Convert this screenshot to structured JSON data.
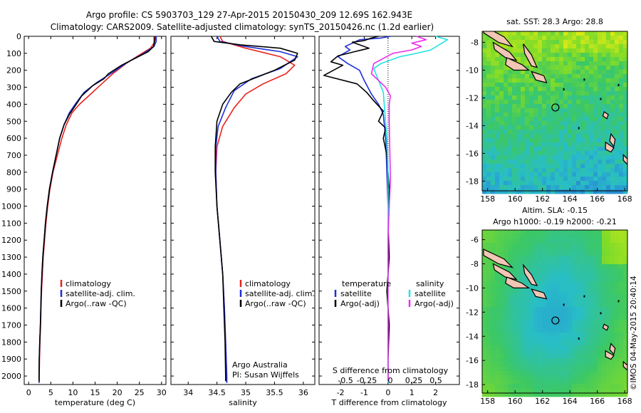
{
  "header": {
    "line1": "Argo profile: CS 5903703_129 27-Apr-2015 20150430_209 12.69S 162.943E",
    "line2": "Climatology: CARS2009. Satellite-adjusted climatology: synTS_20150426.nc (1.2d earlier)"
  },
  "credit": "©IMOS 04-May-2015 20:40:14",
  "colors": {
    "climatology": "#e8241c",
    "satellite": "#1d2fd6",
    "argo": "#000000",
    "sat_sal": "#22e3e3",
    "argo_sal": "#ee2bee"
  },
  "chart_data": [
    {
      "id": "temperature",
      "type": "line",
      "xlabel": "temperature (deg C)",
      "ylim": [
        2050,
        0
      ],
      "xlim": [
        -1,
        31
      ],
      "xticks": [
        "0",
        "5",
        "10",
        "15",
        "20",
        "25",
        "30"
      ],
      "yticks": [
        "0",
        "100",
        "200",
        "300",
        "400",
        "500",
        "600",
        "700",
        "800",
        "900",
        "1000",
        "1100",
        "1200",
        "1300",
        "1400",
        "1500",
        "1600",
        "1700",
        "1800",
        "1900",
        "2000"
      ],
      "legend": [
        "climatology",
        "satellite-adj. clim.",
        "Argo(..raw -QC)"
      ],
      "series": [
        {
          "name": "climatology",
          "color": "#e8241c",
          "points": [
            [
              28.3,
              0
            ],
            [
              28.3,
              40
            ],
            [
              27.5,
              70
            ],
            [
              25,
              110
            ],
            [
              22,
              160
            ],
            [
              19,
              220
            ],
            [
              16.5,
              280
            ],
            [
              14,
              340
            ],
            [
              11.5,
              400
            ],
            [
              9.8,
              450
            ],
            [
              8.5,
              520
            ],
            [
              7.5,
              600
            ],
            [
              6.5,
              700
            ],
            [
              5.5,
              800
            ],
            [
              4.8,
              900
            ],
            [
              4.3,
              1000
            ],
            [
              3.9,
              1100
            ],
            [
              3.6,
              1200
            ],
            [
              3.3,
              1300
            ],
            [
              3.1,
              1400
            ],
            [
              2.9,
              1500
            ],
            [
              2.8,
              1600
            ],
            [
              2.7,
              1700
            ],
            [
              2.55,
              1800
            ],
            [
              2.45,
              1900
            ],
            [
              2.4,
              2000
            ],
            [
              2.4,
              2040
            ]
          ]
        },
        {
          "name": "satellite-adj. clim.",
          "color": "#1d2fd6",
          "points": [
            [
              28.8,
              0
            ],
            [
              28.8,
              30
            ],
            [
              28.3,
              60
            ],
            [
              26,
              100
            ],
            [
              22.5,
              150
            ],
            [
              18.5,
              220
            ],
            [
              15.5,
              270
            ],
            [
              12.5,
              330
            ],
            [
              10.5,
              400
            ],
            [
              9.2,
              450
            ],
            [
              8,
              520
            ],
            [
              7,
              600
            ],
            [
              6.2,
              700
            ],
            [
              5.4,
              800
            ],
            [
              4.7,
              900
            ],
            [
              4.2,
              1000
            ],
            [
              3.8,
              1100
            ],
            [
              3.5,
              1200
            ],
            [
              3.2,
              1300
            ],
            [
              3,
              1400
            ],
            [
              2.85,
              1500
            ],
            [
              2.75,
              1600
            ],
            [
              2.65,
              1700
            ],
            [
              2.5,
              1800
            ],
            [
              2.4,
              1900
            ],
            [
              2.35,
              2000
            ],
            [
              2.35,
              2040
            ]
          ]
        },
        {
          "name": "Argo(..raw -QC)",
          "color": "#000000",
          "points": [
            [
              28.5,
              0
            ],
            [
              28.5,
              20
            ],
            [
              28.2,
              60
            ],
            [
              27,
              90
            ],
            [
              24,
              130
            ],
            [
              21,
              170
            ],
            [
              18,
              220
            ],
            [
              17,
              250
            ],
            [
              14.5,
              290
            ],
            [
              12,
              350
            ],
            [
              10.5,
              410
            ],
            [
              9.2,
              460
            ],
            [
              8,
              520
            ],
            [
              7,
              600
            ],
            [
              6.2,
              700
            ],
            [
              5.4,
              800
            ],
            [
              4.7,
              900
            ],
            [
              4.2,
              1000
            ],
            [
              3.8,
              1100
            ],
            [
              3.5,
              1200
            ],
            [
              3.2,
              1300
            ],
            [
              3,
              1400
            ],
            [
              2.85,
              1500
            ],
            [
              2.75,
              1600
            ],
            [
              2.65,
              1700
            ],
            [
              2.5,
              1800
            ],
            [
              2.4,
              1900
            ],
            [
              2.35,
              2000
            ],
            [
              2.35,
              2030
            ]
          ]
        }
      ]
    },
    {
      "id": "salinity",
      "type": "line",
      "xlabel": "salinity",
      "ylim": [
        2050,
        0
      ],
      "xlim": [
        33.7,
        36.2
      ],
      "xticks": [
        "34",
        "34.5",
        "35",
        "35.5",
        "36"
      ],
      "legend": [
        "climatology",
        "satellite-adj. clim.",
        "Argo(..raw -QC)"
      ],
      "annotation": [
        "Argo Australia",
        "PI: Susan Wijffels"
      ],
      "series": [
        {
          "name": "climatology",
          "color": "#e8241c",
          "points": [
            [
              34.55,
              0
            ],
            [
              34.6,
              30
            ],
            [
              35,
              70
            ],
            [
              35.6,
              120
            ],
            [
              35.85,
              170
            ],
            [
              35.7,
              220
            ],
            [
              35.3,
              280
            ],
            [
              35,
              340
            ],
            [
              34.8,
              420
            ],
            [
              34.6,
              530
            ],
            [
              34.5,
              650
            ],
            [
              34.48,
              800
            ],
            [
              34.5,
              1000
            ],
            [
              34.55,
              1200
            ],
            [
              34.6,
              1400
            ],
            [
              34.63,
              1600
            ],
            [
              34.65,
              1800
            ],
            [
              34.67,
              2000
            ],
            [
              34.67,
              2040
            ]
          ]
        },
        {
          "name": "satellite-adj. clim.",
          "color": "#1d2fd6",
          "points": [
            [
              34.5,
              0
            ],
            [
              34.55,
              30
            ],
            [
              35,
              60
            ],
            [
              35.6,
              90
            ],
            [
              35.9,
              120
            ],
            [
              35.6,
              190
            ],
            [
              35.1,
              250
            ],
            [
              34.8,
              320
            ],
            [
              34.65,
              420
            ],
            [
              34.52,
              530
            ],
            [
              34.48,
              650
            ],
            [
              34.48,
              800
            ],
            [
              34.5,
              1000
            ],
            [
              34.55,
              1200
            ],
            [
              34.6,
              1400
            ],
            [
              34.63,
              1600
            ],
            [
              34.65,
              1800
            ],
            [
              34.67,
              2000
            ],
            [
              34.67,
              2040
            ]
          ]
        },
        {
          "name": "Argo(..raw -QC)",
          "color": "#000000",
          "points": [
            [
              34.4,
              0
            ],
            [
              34.45,
              30
            ],
            [
              34.9,
              50
            ],
            [
              35.6,
              70
            ],
            [
              35.9,
              100
            ],
            [
              35.85,
              140
            ],
            [
              35.5,
              200
            ],
            [
              35.2,
              240
            ],
            [
              34.9,
              280
            ],
            [
              34.75,
              330
            ],
            [
              34.6,
              400
            ],
            [
              34.5,
              500
            ],
            [
              34.47,
              650
            ],
            [
              34.47,
              800
            ],
            [
              34.5,
              1000
            ],
            [
              34.55,
              1200
            ],
            [
              34.6,
              1400
            ],
            [
              34.62,
              1600
            ],
            [
              34.64,
              1800
            ],
            [
              34.65,
              2000
            ],
            [
              34.65,
              2030
            ]
          ]
        }
      ]
    },
    {
      "id": "difference",
      "type": "line",
      "xlabel": "T difference from climatology",
      "xlabel_top": "S difference from climatology",
      "ylim": [
        2050,
        0
      ],
      "xlim": [
        -2.9,
        3.0
      ],
      "xticks": [
        "-2",
        "-1",
        "0",
        "1",
        "2"
      ],
      "top_ticks": [
        "-0.5",
        "-0.25",
        "0",
        "0.25",
        "0.5"
      ],
      "legend_t": [
        "temperature",
        "satellite",
        "Argo(-adj)"
      ],
      "legend_s": [
        "salinity",
        "satellite",
        "Argo(-adj)"
      ],
      "series": [
        {
          "name": "T satellite",
          "color": "#1d2fd6",
          "points": [
            [
              0.1,
              0
            ],
            [
              -0.3,
              10
            ],
            [
              -1.2,
              20
            ],
            [
              -1.8,
              60
            ],
            [
              -1.6,
              80
            ],
            [
              -2.1,
              120
            ],
            [
              -1.7,
              160
            ],
            [
              -1.2,
              200
            ],
            [
              -1,
              260
            ],
            [
              -0.7,
              340
            ],
            [
              -0.4,
              400
            ],
            [
              -0.2,
              460
            ],
            [
              -0.1,
              600
            ],
            [
              -0.05,
              800
            ],
            [
              0,
              1000
            ],
            [
              0,
              2040
            ]
          ]
        },
        {
          "name": "T Argo(-adj)",
          "color": "#000000",
          "points": [
            [
              -0.4,
              0
            ],
            [
              -0.7,
              10
            ],
            [
              -1,
              25
            ],
            [
              -1.5,
              35
            ],
            [
              -1.2,
              50
            ],
            [
              -0.8,
              70
            ],
            [
              -1.4,
              90
            ],
            [
              -2.1,
              115
            ],
            [
              -2.4,
              150
            ],
            [
              -1.9,
              170
            ],
            [
              -2.7,
              230
            ],
            [
              -1.3,
              280
            ],
            [
              -0.9,
              330
            ],
            [
              -0.6,
              380
            ],
            [
              -0.2,
              440
            ],
            [
              -0.4,
              500
            ],
            [
              -0.1,
              540
            ],
            [
              -0.2,
              600
            ],
            [
              -0.05,
              700
            ],
            [
              0.05,
              900
            ],
            [
              0,
              1100
            ],
            [
              0.05,
              1300
            ],
            [
              -0.05,
              1500
            ],
            [
              0.05,
              1700
            ],
            [
              0,
              1900
            ],
            [
              0,
              2030
            ]
          ]
        },
        {
          "name": "S satellite",
          "color": "#22e3e3",
          "points": [
            [
              2,
              0
            ],
            [
              2.5,
              20
            ],
            [
              1.8,
              80
            ],
            [
              1.2,
              100
            ],
            [
              0.5,
              120
            ],
            [
              -0.3,
              160
            ],
            [
              -0.6,
              190
            ],
            [
              -0.4,
              260
            ],
            [
              -0.2,
              330
            ],
            [
              -0.15,
              420
            ],
            [
              -0.05,
              600
            ],
            [
              0,
              800
            ],
            [
              0,
              2040
            ]
          ]
        },
        {
          "name": "S Argo(-adj)",
          "color": "#ee2bee",
          "points": [
            [
              1.2,
              0
            ],
            [
              1.6,
              20
            ],
            [
              1,
              40
            ],
            [
              1.4,
              60
            ],
            [
              1,
              80
            ],
            [
              0.2,
              100
            ],
            [
              -0.6,
              160
            ],
            [
              -0.7,
              220
            ],
            [
              -0.1,
              300
            ],
            [
              0.1,
              350
            ],
            [
              0.05,
              400
            ],
            [
              0.05,
              500
            ],
            [
              0.1,
              850
            ],
            [
              0.05,
              1000
            ],
            [
              0,
              1200
            ],
            [
              0,
              2030
            ]
          ]
        }
      ]
    },
    {
      "id": "map-sst",
      "type": "heatmap",
      "title": "sat. SST: 28.3 Argo: 28.8",
      "xlim": [
        157.6,
        168.2
      ],
      "ylim": [
        -18.7,
        -7.2
      ],
      "xticks": [
        "158",
        "160",
        "162",
        "164",
        "166",
        "168"
      ],
      "yticks": [
        "-8",
        "-10",
        "-12",
        "-14",
        "-16",
        "-18"
      ],
      "argo_position": [
        162.943,
        -12.69
      ]
    },
    {
      "id": "map-sla",
      "type": "heatmap",
      "title": "Altim. SLA: -0.15",
      "subtitle": "Argo h1000: -0.19 h2000: -0.21",
      "xlim": [
        157.6,
        168.2
      ],
      "ylim": [
        -18.7,
        -5.2
      ],
      "xticks": [
        "158",
        "160",
        "162",
        "164",
        "166",
        "168"
      ],
      "yticks": [
        "-6",
        "-8",
        "-10",
        "-12",
        "-14",
        "-16",
        "-18"
      ],
      "argo_position": [
        162.943,
        -12.69
      ]
    }
  ]
}
